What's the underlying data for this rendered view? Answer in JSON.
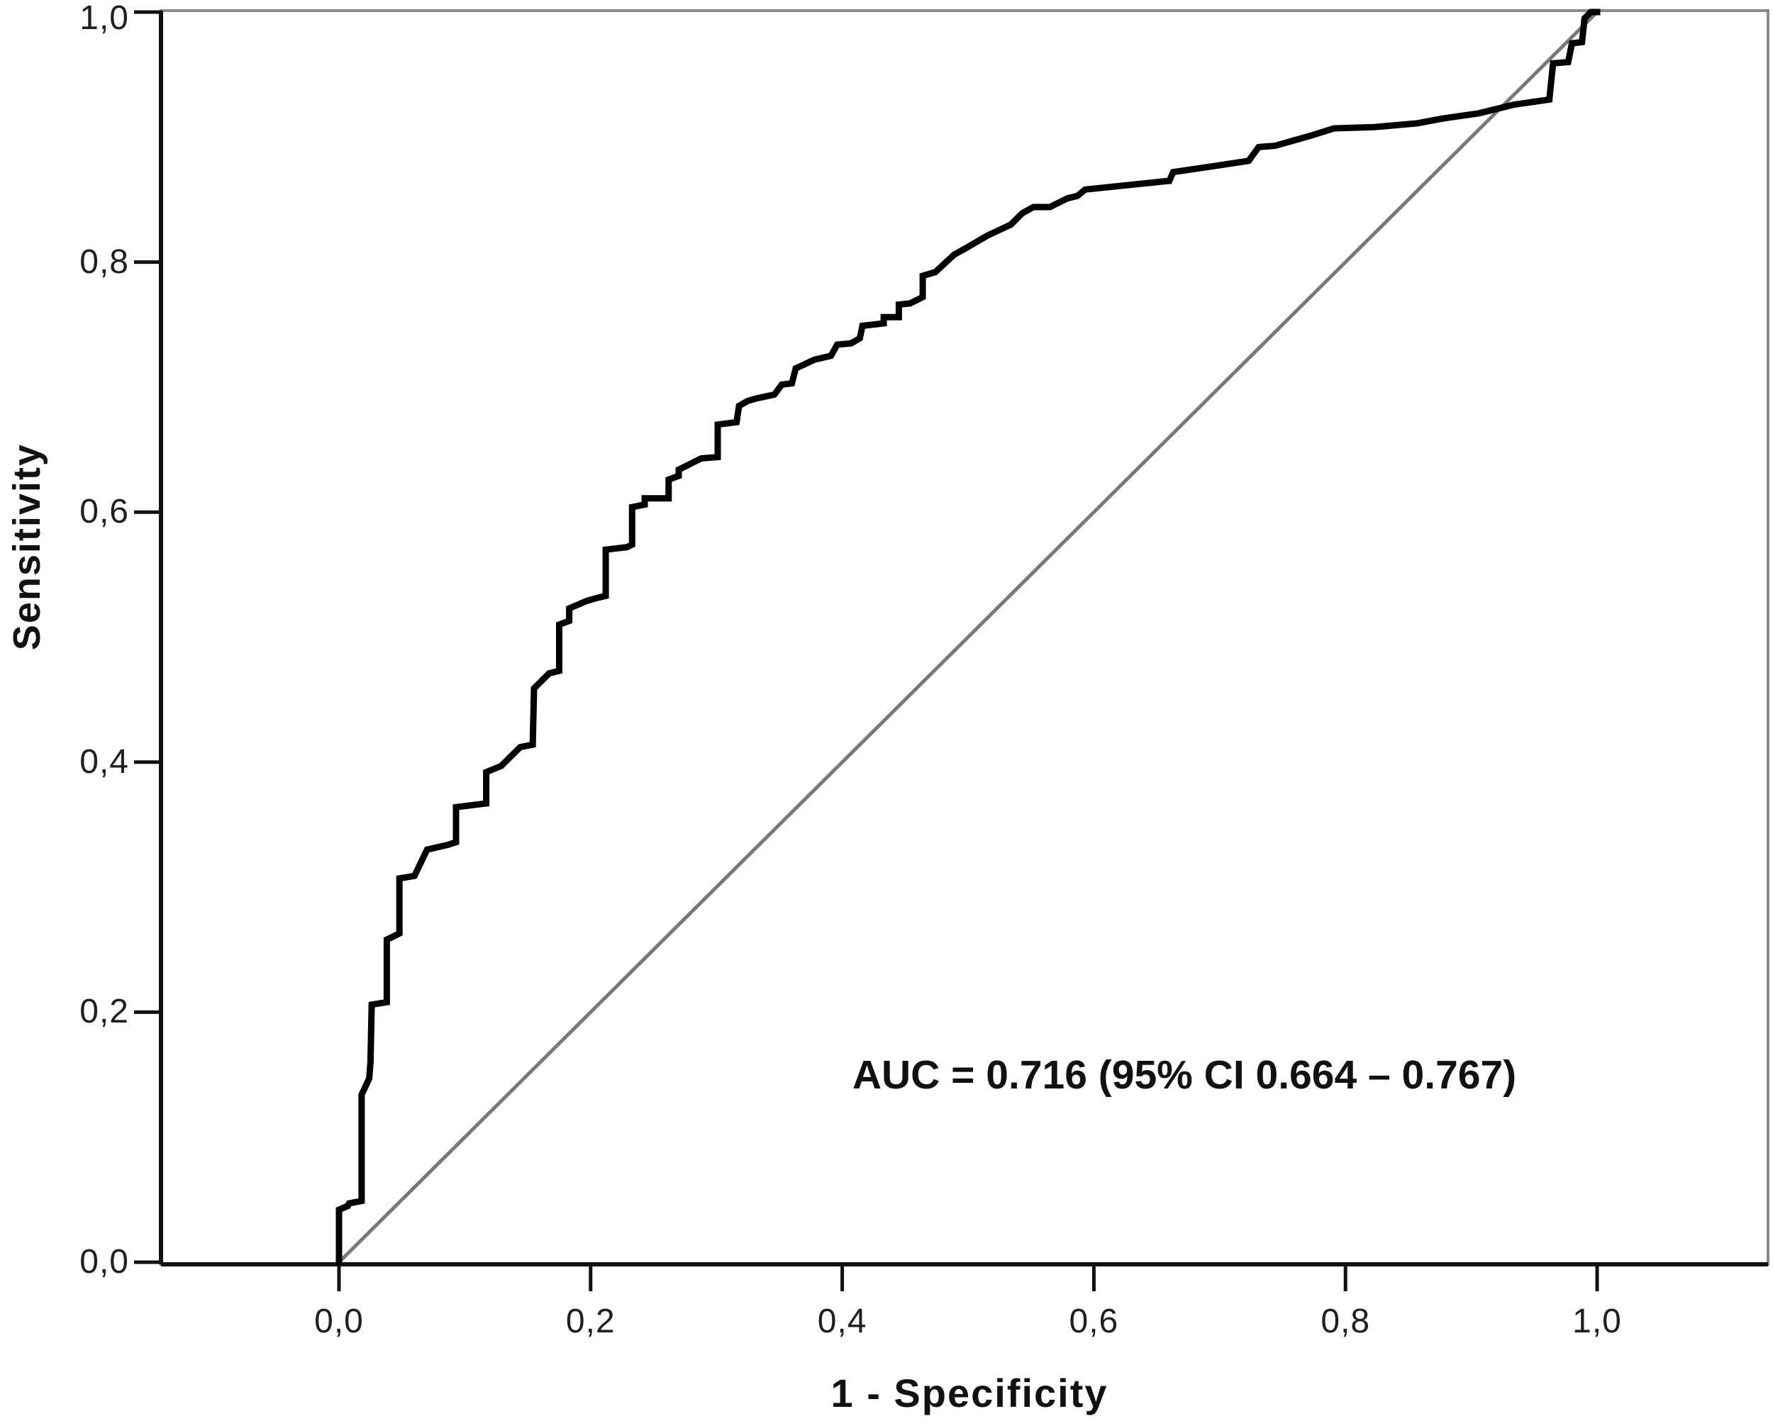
{
  "figure": {
    "kind": "ROC curve plot",
    "background_color": "#ffffff"
  },
  "colors": {
    "curve": "#000000",
    "reference_line": "#787878",
    "frame": "#8a8a8a",
    "axis": "#111111",
    "text": "#1f1f1f"
  },
  "chart_data": {
    "type": "line",
    "title": "",
    "xlabel": "1 - Specificity",
    "ylabel": "Sensitivity",
    "xlim": [
      0,
      1
    ],
    "ylim": [
      0,
      1
    ],
    "grid": false,
    "legend_position": "none",
    "annotation": "AUC = 0.716 (95% CI 0.664 – 0.767)",
    "auc": 0.716,
    "ci_low": 0.664,
    "ci_high": 0.767,
    "x_tick_values": [
      0,
      0.2,
      0.4,
      0.6,
      0.8,
      1.0
    ],
    "x_tick_labels": [
      "0,0",
      "0,2",
      "0,4",
      "0,6",
      "0,8",
      "1,0"
    ],
    "y_tick_values": [
      0,
      0.2,
      0.4,
      0.6,
      0.8,
      1.0
    ],
    "y_tick_labels": [
      "0,0",
      "0,2",
      "0,4",
      "0,6",
      "0,8",
      "1,0"
    ],
    "series": [
      {
        "name": "ROC curve",
        "color": "#000000",
        "stroke_width": 9,
        "points": [
          [
            0.0,
            0.0
          ],
          [
            0.0,
            0.042
          ],
          [
            0.007,
            0.045
          ],
          [
            0.008,
            0.047
          ],
          [
            0.018,
            0.049
          ],
          [
            0.018,
            0.134
          ],
          [
            0.024,
            0.147
          ],
          [
            0.025,
            0.16
          ],
          [
            0.026,
            0.206
          ],
          [
            0.038,
            0.208
          ],
          [
            0.038,
            0.258
          ],
          [
            0.044,
            0.261
          ],
          [
            0.048,
            0.263
          ],
          [
            0.048,
            0.307
          ],
          [
            0.06,
            0.309
          ],
          [
            0.07,
            0.33
          ],
          [
            0.087,
            0.334
          ],
          [
            0.093,
            0.336
          ],
          [
            0.093,
            0.364
          ],
          [
            0.117,
            0.367
          ],
          [
            0.117,
            0.392
          ],
          [
            0.129,
            0.397
          ],
          [
            0.144,
            0.412
          ],
          [
            0.154,
            0.414
          ],
          [
            0.155,
            0.459
          ],
          [
            0.167,
            0.471
          ],
          [
            0.175,
            0.473
          ],
          [
            0.175,
            0.51
          ],
          [
            0.183,
            0.513
          ],
          [
            0.183,
            0.523
          ],
          [
            0.197,
            0.529
          ],
          [
            0.204,
            0.531
          ],
          [
            0.212,
            0.533
          ],
          [
            0.212,
            0.57
          ],
          [
            0.229,
            0.572
          ],
          [
            0.233,
            0.574
          ],
          [
            0.233,
            0.604
          ],
          [
            0.243,
            0.606
          ],
          [
            0.243,
            0.611
          ],
          [
            0.262,
            0.611
          ],
          [
            0.262,
            0.626
          ],
          [
            0.27,
            0.629
          ],
          [
            0.27,
            0.634
          ],
          [
            0.288,
            0.643
          ],
          [
            0.301,
            0.644
          ],
          [
            0.301,
            0.67
          ],
          [
            0.316,
            0.672
          ],
          [
            0.318,
            0.685
          ],
          [
            0.325,
            0.689
          ],
          [
            0.332,
            0.691
          ],
          [
            0.346,
            0.694
          ],
          [
            0.352,
            0.702
          ],
          [
            0.36,
            0.703
          ],
          [
            0.363,
            0.715
          ],
          [
            0.378,
            0.722
          ],
          [
            0.391,
            0.725
          ],
          [
            0.396,
            0.734
          ],
          [
            0.407,
            0.735
          ],
          [
            0.414,
            0.739
          ],
          [
            0.416,
            0.749
          ],
          [
            0.433,
            0.751
          ],
          [
            0.433,
            0.756
          ],
          [
            0.445,
            0.756
          ],
          [
            0.445,
            0.766
          ],
          [
            0.454,
            0.767
          ],
          [
            0.464,
            0.772
          ],
          [
            0.464,
            0.789
          ],
          [
            0.474,
            0.792
          ],
          [
            0.489,
            0.806
          ],
          [
            0.498,
            0.811
          ],
          [
            0.515,
            0.821
          ],
          [
            0.534,
            0.83
          ],
          [
            0.543,
            0.839
          ],
          [
            0.552,
            0.844
          ],
          [
            0.565,
            0.844
          ],
          [
            0.579,
            0.851
          ],
          [
            0.587,
            0.853
          ],
          [
            0.593,
            0.858
          ],
          [
            0.66,
            0.865
          ],
          [
            0.663,
            0.872
          ],
          [
            0.697,
            0.877
          ],
          [
            0.723,
            0.881
          ],
          [
            0.731,
            0.892
          ],
          [
            0.744,
            0.893
          ],
          [
            0.772,
            0.901
          ],
          [
            0.791,
            0.907
          ],
          [
            0.823,
            0.908
          ],
          [
            0.857,
            0.911
          ],
          [
            0.878,
            0.915
          ],
          [
            0.906,
            0.919
          ],
          [
            0.934,
            0.926
          ],
          [
            0.962,
            0.93
          ],
          [
            0.965,
            0.959
          ],
          [
            0.977,
            0.96
          ],
          [
            0.98,
            0.975
          ],
          [
            0.988,
            0.976
          ],
          [
            0.99,
            0.995
          ],
          [
            0.995,
            1.0
          ],
          [
            1.0,
            1.0
          ]
        ]
      },
      {
        "name": "Reference diagonal",
        "color": "#787878",
        "stroke_width": 5,
        "points": [
          [
            0,
            0
          ],
          [
            1,
            1
          ]
        ]
      }
    ]
  }
}
